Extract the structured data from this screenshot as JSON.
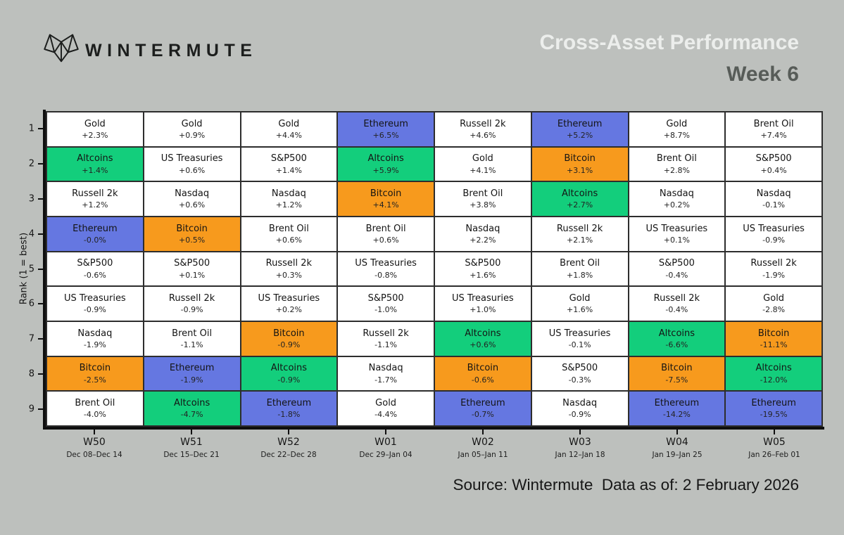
{
  "header": {
    "brand": "WINTERMUTE",
    "title": "Cross-Asset Performance",
    "subtitle": "Week 6"
  },
  "footer": {
    "source": "Source: Wintermute  Data as of: 2 February 2026"
  },
  "colors": {
    "background": "#bdc0bd",
    "title": "#eceeec",
    "subtitle": "#575c58",
    "grid_line": "#2d2d2d",
    "cell_default": "#ffffff"
  },
  "chart_data": {
    "type": "table",
    "title": "Cross-Asset Performance Week 6",
    "ylabel": "Rank (1 = best)",
    "rank_labels": [
      "1",
      "2",
      "3",
      "4",
      "5",
      "6",
      "7",
      "8",
      "9"
    ],
    "asset_colors": {
      "Ethereum": "#6577e1",
      "Bitcoin": "#f79a1d",
      "Altcoins": "#13ce7c",
      "default": "#ffffff"
    },
    "weeks": [
      {
        "label": "W50",
        "dates": "Dec 08–Dec 14",
        "ranking": [
          {
            "asset": "Gold",
            "change": "+2.3%"
          },
          {
            "asset": "Altcoins",
            "change": "+1.4%"
          },
          {
            "asset": "Russell 2k",
            "change": "+1.2%"
          },
          {
            "asset": "Ethereum",
            "change": "-0.0%"
          },
          {
            "asset": "S&P500",
            "change": "-0.6%"
          },
          {
            "asset": "US Treasuries",
            "change": "-0.9%"
          },
          {
            "asset": "Nasdaq",
            "change": "-1.9%"
          },
          {
            "asset": "Bitcoin",
            "change": "-2.5%"
          },
          {
            "asset": "Brent Oil",
            "change": "-4.0%"
          }
        ]
      },
      {
        "label": "W51",
        "dates": "Dec 15–Dec 21",
        "ranking": [
          {
            "asset": "Gold",
            "change": "+0.9%"
          },
          {
            "asset": "US Treasuries",
            "change": "+0.6%"
          },
          {
            "asset": "Nasdaq",
            "change": "+0.6%"
          },
          {
            "asset": "Bitcoin",
            "change": "+0.5%"
          },
          {
            "asset": "S&P500",
            "change": "+0.1%"
          },
          {
            "asset": "Russell 2k",
            "change": "-0.9%"
          },
          {
            "asset": "Brent Oil",
            "change": "-1.1%"
          },
          {
            "asset": "Ethereum",
            "change": "-1.9%"
          },
          {
            "asset": "Altcoins",
            "change": "-4.7%"
          }
        ]
      },
      {
        "label": "W52",
        "dates": "Dec 22–Dec 28",
        "ranking": [
          {
            "asset": "Gold",
            "change": "+4.4%"
          },
          {
            "asset": "S&P500",
            "change": "+1.4%"
          },
          {
            "asset": "Nasdaq",
            "change": "+1.2%"
          },
          {
            "asset": "Brent Oil",
            "change": "+0.6%"
          },
          {
            "asset": "Russell 2k",
            "change": "+0.3%"
          },
          {
            "asset": "US Treasuries",
            "change": "+0.2%"
          },
          {
            "asset": "Bitcoin",
            "change": "-0.9%"
          },
          {
            "asset": "Altcoins",
            "change": "-0.9%"
          },
          {
            "asset": "Ethereum",
            "change": "-1.8%"
          }
        ]
      },
      {
        "label": "W01",
        "dates": "Dec 29–Jan 04",
        "ranking": [
          {
            "asset": "Ethereum",
            "change": "+6.5%"
          },
          {
            "asset": "Altcoins",
            "change": "+5.9%"
          },
          {
            "asset": "Bitcoin",
            "change": "+4.1%"
          },
          {
            "asset": "Brent Oil",
            "change": "+0.6%"
          },
          {
            "asset": "US Treasuries",
            "change": "-0.8%"
          },
          {
            "asset": "S&P500",
            "change": "-1.0%"
          },
          {
            "asset": "Russell 2k",
            "change": "-1.1%"
          },
          {
            "asset": "Nasdaq",
            "change": "-1.7%"
          },
          {
            "asset": "Gold",
            "change": "-4.4%"
          }
        ]
      },
      {
        "label": "W02",
        "dates": "Jan 05–Jan 11",
        "ranking": [
          {
            "asset": "Russell 2k",
            "change": "+4.6%"
          },
          {
            "asset": "Gold",
            "change": "+4.1%"
          },
          {
            "asset": "Brent Oil",
            "change": "+3.8%"
          },
          {
            "asset": "Nasdaq",
            "change": "+2.2%"
          },
          {
            "asset": "S&P500",
            "change": "+1.6%"
          },
          {
            "asset": "US Treasuries",
            "change": "+1.0%"
          },
          {
            "asset": "Altcoins",
            "change": "+0.6%"
          },
          {
            "asset": "Bitcoin",
            "change": "-0.6%"
          },
          {
            "asset": "Ethereum",
            "change": "-0.7%"
          }
        ]
      },
      {
        "label": "W03",
        "dates": "Jan 12–Jan 18",
        "ranking": [
          {
            "asset": "Ethereum",
            "change": "+5.2%"
          },
          {
            "asset": "Bitcoin",
            "change": "+3.1%"
          },
          {
            "asset": "Altcoins",
            "change": "+2.7%"
          },
          {
            "asset": "Russell 2k",
            "change": "+2.1%"
          },
          {
            "asset": "Brent Oil",
            "change": "+1.8%"
          },
          {
            "asset": "Gold",
            "change": "+1.6%"
          },
          {
            "asset": "US Treasuries",
            "change": "-0.1%"
          },
          {
            "asset": "S&P500",
            "change": "-0.3%"
          },
          {
            "asset": "Nasdaq",
            "change": "-0.9%"
          }
        ]
      },
      {
        "label": "W04",
        "dates": "Jan 19–Jan 25",
        "ranking": [
          {
            "asset": "Gold",
            "change": "+8.7%"
          },
          {
            "asset": "Brent Oil",
            "change": "+2.8%"
          },
          {
            "asset": "Nasdaq",
            "change": "+0.2%"
          },
          {
            "asset": "US Treasuries",
            "change": "+0.1%"
          },
          {
            "asset": "S&P500",
            "change": "-0.4%"
          },
          {
            "asset": "Russell 2k",
            "change": "-0.4%"
          },
          {
            "asset": "Altcoins",
            "change": "-6.6%"
          },
          {
            "asset": "Bitcoin",
            "change": "-7.5%"
          },
          {
            "asset": "Ethereum",
            "change": "-14.2%"
          }
        ]
      },
      {
        "label": "W05",
        "dates": "Jan 26–Feb 01",
        "ranking": [
          {
            "asset": "Brent Oil",
            "change": "+7.4%"
          },
          {
            "asset": "S&P500",
            "change": "+0.4%"
          },
          {
            "asset": "Nasdaq",
            "change": "-0.1%"
          },
          {
            "asset": "US Treasuries",
            "change": "-0.9%"
          },
          {
            "asset": "Russell 2k",
            "change": "-1.9%"
          },
          {
            "asset": "Gold",
            "change": "-2.8%"
          },
          {
            "asset": "Bitcoin",
            "change": "-11.1%"
          },
          {
            "asset": "Altcoins",
            "change": "-12.0%"
          },
          {
            "asset": "Ethereum",
            "change": "-19.5%"
          }
        ]
      }
    ]
  }
}
